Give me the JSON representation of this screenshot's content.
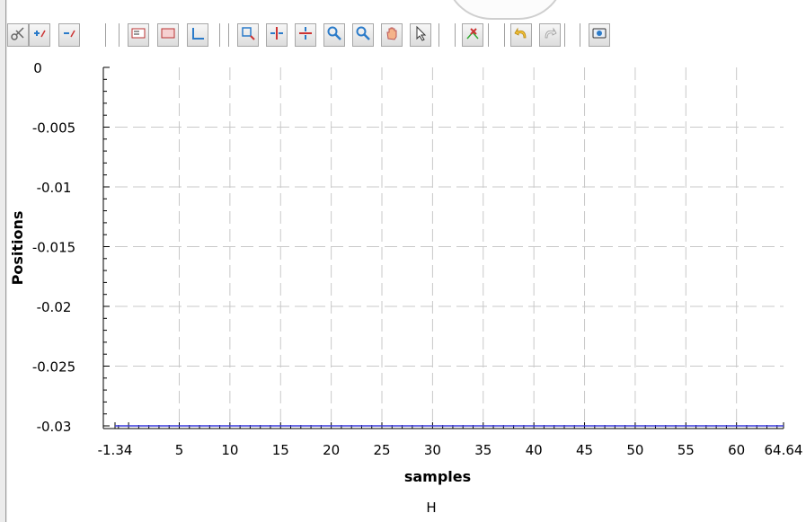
{
  "toolbar": {
    "buttons": [
      {
        "icon": "scissors-icon"
      },
      {
        "icon": "add-point-icon"
      },
      {
        "icon": "remove-point-icon"
      },
      {
        "icon": "legend-icon"
      },
      {
        "icon": "label-icon"
      },
      {
        "icon": "axes-icon"
      },
      {
        "icon": "zoom-box-icon"
      },
      {
        "icon": "fit-horizontal-icon"
      },
      {
        "icon": "fit-vertical-icon"
      },
      {
        "icon": "zoom-in-icon"
      },
      {
        "icon": "zoom-out-icon"
      },
      {
        "icon": "pan-hand-icon"
      },
      {
        "icon": "pointer-icon"
      },
      {
        "icon": "data-tip-icon"
      },
      {
        "icon": "undo-icon"
      },
      {
        "icon": "redo-icon"
      },
      {
        "icon": "screenshot-icon"
      }
    ]
  },
  "chart_data": {
    "type": "line",
    "xlabel": "samples",
    "ylabel": "Positions",
    "xlim": [
      -1.34,
      64.64
    ],
    "ylim": [
      -0.03,
      0
    ],
    "x_ticks": [
      -1.34,
      5,
      10,
      15,
      20,
      25,
      30,
      35,
      40,
      45,
      50,
      55,
      60,
      64.64
    ],
    "x_tick_labels": [
      "-1.34",
      "5",
      "10",
      "15",
      "20",
      "25",
      "30",
      "35",
      "40",
      "45",
      "50",
      "55",
      "60",
      "64.64"
    ],
    "y_ticks": [
      0,
      -0.005,
      -0.01,
      -0.015,
      -0.02,
      -0.025,
      -0.03
    ],
    "y_tick_labels": [
      "0",
      "-0.005",
      "-0.01",
      "-0.015",
      "-0.02",
      "-0.025",
      "-0.03"
    ],
    "grid": true,
    "series": [
      {
        "x": [
          -1.34,
          64.64
        ],
        "y": [
          -0.03,
          -0.03
        ],
        "color": "#3a3ad8"
      }
    ]
  },
  "footer": {
    "label": "H"
  }
}
